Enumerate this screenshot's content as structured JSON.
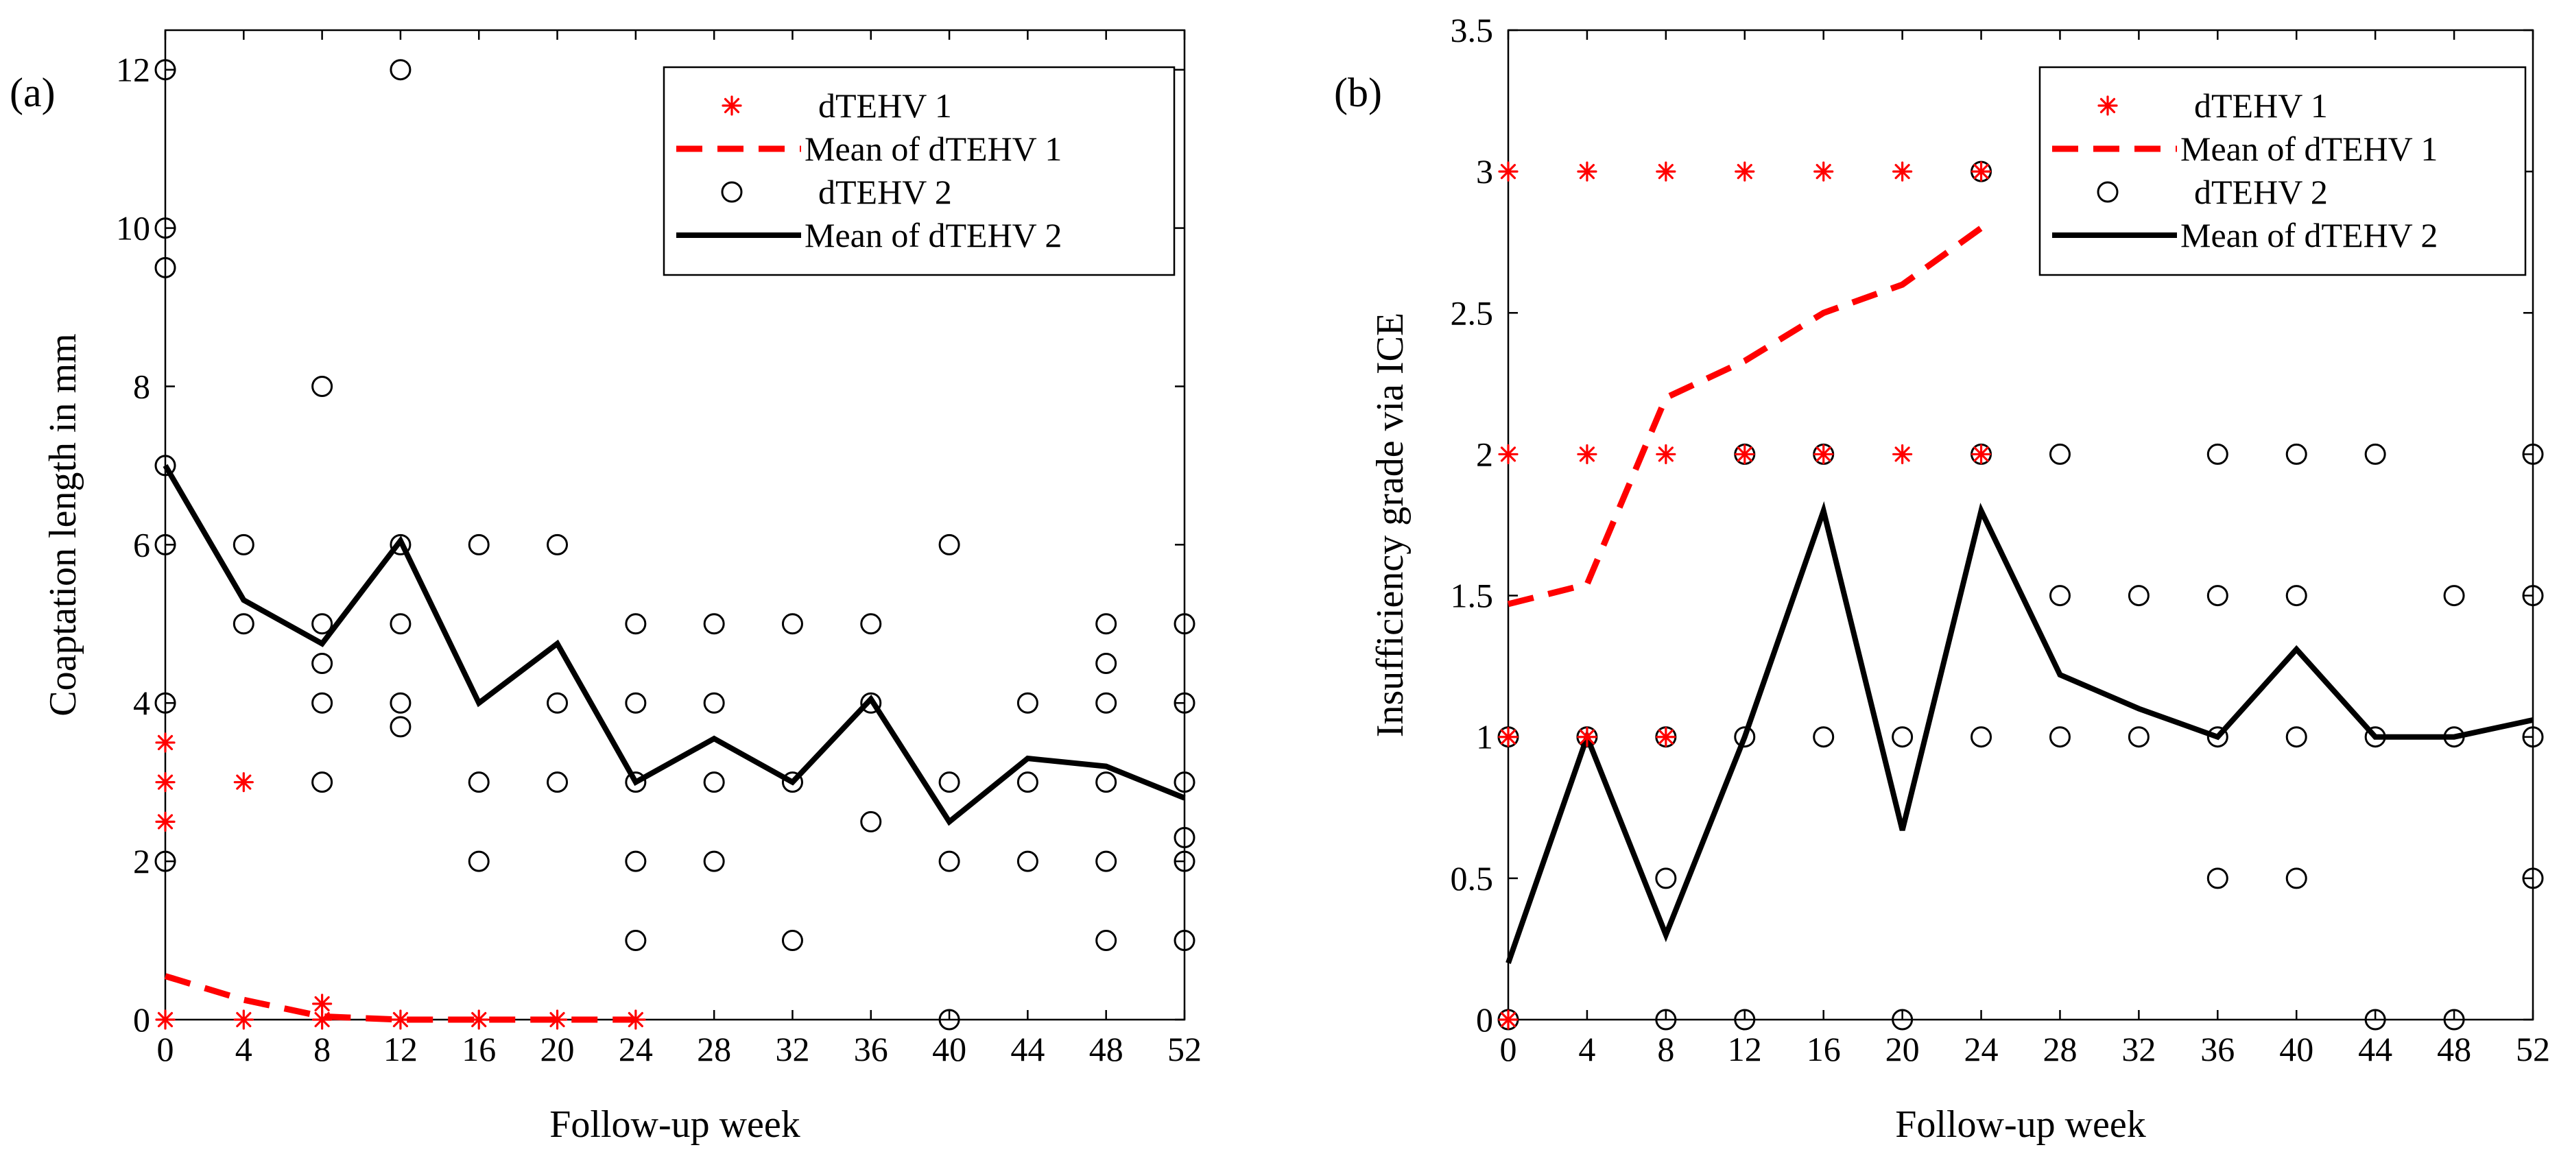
{
  "chart_data": [
    {
      "panel_label": "(a)",
      "type": "scatter",
      "xlabel": "Follow-up week",
      "ylabel": "Coaptation length in mm",
      "xlim": [
        0,
        52
      ],
      "ylim": [
        0,
        12.5
      ],
      "xticks": [
        0,
        4,
        8,
        12,
        16,
        20,
        24,
        28,
        32,
        36,
        40,
        44,
        48,
        52
      ],
      "yticks": [
        0,
        2,
        4,
        6,
        8,
        10,
        12
      ],
      "legend_position": "top-right",
      "series": [
        {
          "name": "dTEHV 1",
          "kind": "scatter",
          "marker": "asterisk",
          "color": "#ff0000",
          "points": [
            [
              0,
              0
            ],
            [
              0,
              2.5
            ],
            [
              0,
              3
            ],
            [
              0,
              3.5
            ],
            [
              4,
              0
            ],
            [
              4,
              3
            ],
            [
              8,
              0
            ],
            [
              8,
              0.2
            ],
            [
              12,
              0
            ],
            [
              16,
              0
            ],
            [
              20,
              0
            ],
            [
              24,
              0
            ]
          ]
        },
        {
          "name": "Mean of dTEHV 1",
          "kind": "line",
          "style": "dashed",
          "color": "#ff0000",
          "points": [
            [
              0,
              0.55
            ],
            [
              4,
              0.25
            ],
            [
              8,
              0.04
            ],
            [
              12,
              0
            ],
            [
              16,
              0
            ],
            [
              20,
              0
            ],
            [
              24,
              0
            ]
          ]
        },
        {
          "name": "dTEHV 2",
          "kind": "scatter",
          "marker": "circle",
          "color": "#000000",
          "points": [
            [
              0,
              12
            ],
            [
              0,
              10
            ],
            [
              0,
              9.5
            ],
            [
              0,
              7
            ],
            [
              0,
              6
            ],
            [
              0,
              4
            ],
            [
              0,
              2
            ],
            [
              4,
              6
            ],
            [
              4,
              5
            ],
            [
              8,
              8
            ],
            [
              8,
              5
            ],
            [
              8,
              4.5
            ],
            [
              8,
              4
            ],
            [
              8,
              3
            ],
            [
              12,
              12
            ],
            [
              12,
              6
            ],
            [
              12,
              5
            ],
            [
              12,
              4
            ],
            [
              12,
              3.7
            ],
            [
              16,
              6
            ],
            [
              16,
              3
            ],
            [
              16,
              2
            ],
            [
              20,
              6
            ],
            [
              20,
              4
            ],
            [
              20,
              3
            ],
            [
              24,
              5
            ],
            [
              24,
              4
            ],
            [
              24,
              3
            ],
            [
              24,
              2
            ],
            [
              24,
              1
            ],
            [
              28,
              5
            ],
            [
              28,
              4
            ],
            [
              28,
              3
            ],
            [
              28,
              2
            ],
            [
              32,
              5
            ],
            [
              32,
              3
            ],
            [
              32,
              1
            ],
            [
              36,
              5
            ],
            [
              36,
              4
            ],
            [
              36,
              2.5
            ],
            [
              40,
              6
            ],
            [
              40,
              3
            ],
            [
              40,
              2
            ],
            [
              40,
              0
            ],
            [
              44,
              4
            ],
            [
              44,
              3
            ],
            [
              44,
              2
            ],
            [
              48,
              5
            ],
            [
              48,
              4.5
            ],
            [
              48,
              4
            ],
            [
              48,
              3
            ],
            [
              48,
              2
            ],
            [
              48,
              1
            ],
            [
              52,
              5
            ],
            [
              52,
              4
            ],
            [
              52,
              3
            ],
            [
              52,
              2.3
            ],
            [
              52,
              2
            ],
            [
              52,
              1
            ]
          ]
        },
        {
          "name": "Mean of dTEHV 2",
          "kind": "line",
          "style": "solid",
          "color": "#000000",
          "points": [
            [
              0,
              7
            ],
            [
              4,
              5.3
            ],
            [
              8,
              4.75
            ],
            [
              12,
              6.05
            ],
            [
              16,
              4
            ],
            [
              20,
              4.75
            ],
            [
              24,
              3
            ],
            [
              28,
              3.55
            ],
            [
              32,
              3
            ],
            [
              36,
              4.05
            ],
            [
              40,
              2.5
            ],
            [
              44,
              3.3
            ],
            [
              48,
              3.2
            ],
            [
              52,
              2.8
            ]
          ]
        }
      ]
    },
    {
      "panel_label": "(b)",
      "type": "scatter",
      "xlabel": "Follow-up week",
      "ylabel": "Insufficiency grade via ICE",
      "xlim": [
        0,
        52
      ],
      "ylim": [
        0,
        3.5
      ],
      "xticks": [
        0,
        4,
        8,
        12,
        16,
        20,
        24,
        28,
        32,
        36,
        40,
        44,
        48,
        52
      ],
      "yticks": [
        0,
        0.5,
        1,
        1.5,
        2,
        2.5,
        3,
        3.5
      ],
      "legend_position": "top-right",
      "series": [
        {
          "name": "dTEHV 1",
          "kind": "scatter",
          "marker": "asterisk",
          "color": "#ff0000",
          "points": [
            [
              0,
              3
            ],
            [
              0,
              2
            ],
            [
              0,
              1
            ],
            [
              0,
              0
            ],
            [
              4,
              3
            ],
            [
              4,
              2
            ],
            [
              4,
              1
            ],
            [
              8,
              3
            ],
            [
              8,
              2
            ],
            [
              8,
              1
            ],
            [
              12,
              3
            ],
            [
              12,
              2
            ],
            [
              16,
              3
            ],
            [
              16,
              2
            ],
            [
              20,
              3
            ],
            [
              20,
              2
            ],
            [
              24,
              3
            ],
            [
              24,
              2
            ]
          ]
        },
        {
          "name": "Mean of dTEHV 1",
          "kind": "line",
          "style": "dashed",
          "color": "#ff0000",
          "points": [
            [
              0,
              1.47
            ],
            [
              4,
              1.54
            ],
            [
              8,
              2.2
            ],
            [
              12,
              2.33
            ],
            [
              16,
              2.5
            ],
            [
              20,
              2.6
            ],
            [
              24,
              2.8
            ]
          ]
        },
        {
          "name": "dTEHV 2",
          "kind": "scatter",
          "marker": "circle",
          "color": "#000000",
          "points": [
            [
              0,
              1
            ],
            [
              0,
              0
            ],
            [
              4,
              1
            ],
            [
              8,
              1
            ],
            [
              8,
              0.5
            ],
            [
              8,
              0
            ],
            [
              12,
              2
            ],
            [
              12,
              1
            ],
            [
              12,
              0
            ],
            [
              16,
              2
            ],
            [
              16,
              1
            ],
            [
              20,
              1
            ],
            [
              20,
              0
            ],
            [
              24,
              3
            ],
            [
              24,
              2
            ],
            [
              24,
              1
            ],
            [
              28,
              2
            ],
            [
              28,
              1.5
            ],
            [
              28,
              1
            ],
            [
              32,
              1.5
            ],
            [
              32,
              1
            ],
            [
              36,
              2
            ],
            [
              36,
              1.5
            ],
            [
              36,
              1
            ],
            [
              36,
              0.5
            ],
            [
              40,
              2
            ],
            [
              40,
              1.5
            ],
            [
              40,
              1
            ],
            [
              40,
              0.5
            ],
            [
              44,
              2
            ],
            [
              44,
              1
            ],
            [
              44,
              0
            ],
            [
              48,
              1.5
            ],
            [
              48,
              1
            ],
            [
              48,
              0
            ],
            [
              52,
              2
            ],
            [
              52,
              1.5
            ],
            [
              52,
              1
            ],
            [
              52,
              0.5
            ]
          ]
        },
        {
          "name": "Mean of dTEHV 2",
          "kind": "line",
          "style": "solid",
          "color": "#000000",
          "points": [
            [
              0,
              0.2
            ],
            [
              4,
              1
            ],
            [
              8,
              0.3
            ],
            [
              12,
              1
            ],
            [
              16,
              1.8
            ],
            [
              20,
              0.67
            ],
            [
              24,
              1.8
            ],
            [
              28,
              1.22
            ],
            [
              32,
              1.1
            ],
            [
              36,
              1
            ],
            [
              40,
              1.31
            ],
            [
              44,
              1
            ],
            [
              48,
              1
            ],
            [
              52,
              1.06
            ]
          ]
        }
      ]
    }
  ]
}
